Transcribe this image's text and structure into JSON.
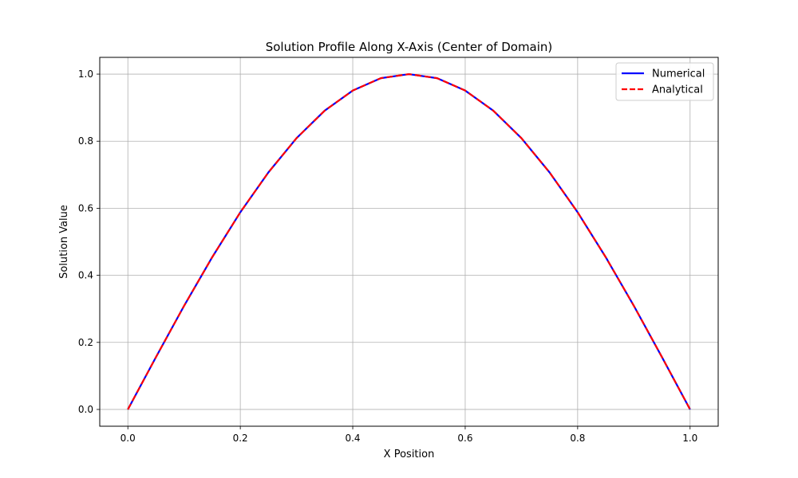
{
  "chart_data": {
    "type": "line",
    "title": "Solution Profile Along X-Axis (Center of Domain)",
    "xlabel": "X Position",
    "ylabel": "Solution Value",
    "xlim": [
      -0.05,
      1.05
    ],
    "ylim": [
      -0.05,
      1.05
    ],
    "xticks": [
      0.0,
      0.2,
      0.4,
      0.6,
      0.8,
      1.0
    ],
    "yticks": [
      0.0,
      0.2,
      0.4,
      0.6,
      0.8,
      1.0
    ],
    "xtick_labels": [
      "0.0",
      "0.2",
      "0.4",
      "0.6",
      "0.8",
      "1.0"
    ],
    "ytick_labels": [
      "0.0",
      "0.2",
      "0.4",
      "0.6",
      "0.8",
      "1.0"
    ],
    "grid": true,
    "legend_position": "top-right",
    "x": [
      0.0,
      0.05,
      0.1,
      0.15,
      0.2,
      0.25,
      0.3,
      0.35,
      0.4,
      0.45,
      0.5,
      0.55,
      0.6,
      0.65,
      0.7,
      0.75,
      0.8,
      0.85,
      0.9,
      0.95,
      1.0
    ],
    "series": [
      {
        "name": "Numerical",
        "color": "#0000ff",
        "style": "solid",
        "values": [
          0.0,
          0.156,
          0.309,
          0.454,
          0.588,
          0.707,
          0.809,
          0.891,
          0.951,
          0.988,
          1.0,
          0.988,
          0.951,
          0.891,
          0.809,
          0.707,
          0.588,
          0.454,
          0.309,
          0.156,
          0.0
        ]
      },
      {
        "name": "Analytical",
        "color": "#ff0000",
        "style": "dashed",
        "values": [
          0.0,
          0.156,
          0.309,
          0.454,
          0.588,
          0.707,
          0.809,
          0.891,
          0.951,
          0.988,
          1.0,
          0.988,
          0.951,
          0.891,
          0.809,
          0.707,
          0.588,
          0.454,
          0.309,
          0.156,
          0.0
        ]
      }
    ]
  }
}
